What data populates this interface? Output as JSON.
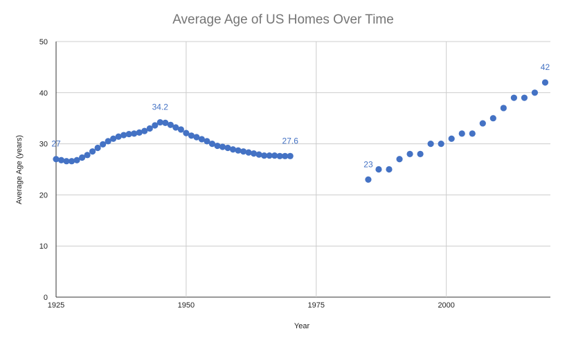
{
  "chart_data": {
    "type": "scatter",
    "title": "Average Age of US Homes Over Time",
    "xlabel": "Year",
    "ylabel": "Average Age (years)",
    "xlim": [
      1925,
      2020
    ],
    "ylim": [
      0,
      50
    ],
    "x_ticks": [
      1925,
      1950,
      1975,
      2000
    ],
    "y_ticks": [
      0,
      10,
      20,
      30,
      40,
      50
    ],
    "grid": true,
    "legend": "none",
    "marker_color": "#4472c4",
    "label_color": "#4472c4",
    "points": [
      {
        "x": 1925,
        "y": 27.0,
        "label": "27"
      },
      {
        "x": 1926,
        "y": 26.8
      },
      {
        "x": 1927,
        "y": 26.6
      },
      {
        "x": 1928,
        "y": 26.6
      },
      {
        "x": 1929,
        "y": 26.8
      },
      {
        "x": 1930,
        "y": 27.3
      },
      {
        "x": 1931,
        "y": 27.8
      },
      {
        "x": 1932,
        "y": 28.5
      },
      {
        "x": 1933,
        "y": 29.2
      },
      {
        "x": 1934,
        "y": 29.9
      },
      {
        "x": 1935,
        "y": 30.5
      },
      {
        "x": 1936,
        "y": 31.0
      },
      {
        "x": 1937,
        "y": 31.4
      },
      {
        "x": 1938,
        "y": 31.7
      },
      {
        "x": 1939,
        "y": 31.9
      },
      {
        "x": 1940,
        "y": 32.0
      },
      {
        "x": 1941,
        "y": 32.2
      },
      {
        "x": 1942,
        "y": 32.5
      },
      {
        "x": 1943,
        "y": 33.0
      },
      {
        "x": 1944,
        "y": 33.6
      },
      {
        "x": 1945,
        "y": 34.2,
        "label": "34.2"
      },
      {
        "x": 1946,
        "y": 34.1
      },
      {
        "x": 1947,
        "y": 33.7
      },
      {
        "x": 1948,
        "y": 33.2
      },
      {
        "x": 1949,
        "y": 32.8
      },
      {
        "x": 1950,
        "y": 32.1
      },
      {
        "x": 1951,
        "y": 31.6
      },
      {
        "x": 1952,
        "y": 31.3
      },
      {
        "x": 1953,
        "y": 30.9
      },
      {
        "x": 1954,
        "y": 30.5
      },
      {
        "x": 1955,
        "y": 30.0
      },
      {
        "x": 1956,
        "y": 29.6
      },
      {
        "x": 1957,
        "y": 29.4
      },
      {
        "x": 1958,
        "y": 29.2
      },
      {
        "x": 1959,
        "y": 28.9
      },
      {
        "x": 1960,
        "y": 28.7
      },
      {
        "x": 1961,
        "y": 28.5
      },
      {
        "x": 1962,
        "y": 28.3
      },
      {
        "x": 1963,
        "y": 28.1
      },
      {
        "x": 1964,
        "y": 27.9
      },
      {
        "x": 1965,
        "y": 27.7
      },
      {
        "x": 1966,
        "y": 27.7
      },
      {
        "x": 1967,
        "y": 27.7
      },
      {
        "x": 1968,
        "y": 27.6
      },
      {
        "x": 1969,
        "y": 27.6
      },
      {
        "x": 1970,
        "y": 27.6,
        "label": "27.6"
      },
      {
        "x": 1985,
        "y": 23,
        "label": "23"
      },
      {
        "x": 1987,
        "y": 25
      },
      {
        "x": 1989,
        "y": 25
      },
      {
        "x": 1991,
        "y": 27
      },
      {
        "x": 1993,
        "y": 28
      },
      {
        "x": 1995,
        "y": 28
      },
      {
        "x": 1997,
        "y": 30
      },
      {
        "x": 1999,
        "y": 30
      },
      {
        "x": 2001,
        "y": 31
      },
      {
        "x": 2003,
        "y": 32
      },
      {
        "x": 2005,
        "y": 32
      },
      {
        "x": 2007,
        "y": 34
      },
      {
        "x": 2009,
        "y": 35
      },
      {
        "x": 2011,
        "y": 37
      },
      {
        "x": 2013,
        "y": 39
      },
      {
        "x": 2015,
        "y": 39
      },
      {
        "x": 2017,
        "y": 40
      },
      {
        "x": 2019,
        "y": 42,
        "label": "42"
      }
    ]
  }
}
